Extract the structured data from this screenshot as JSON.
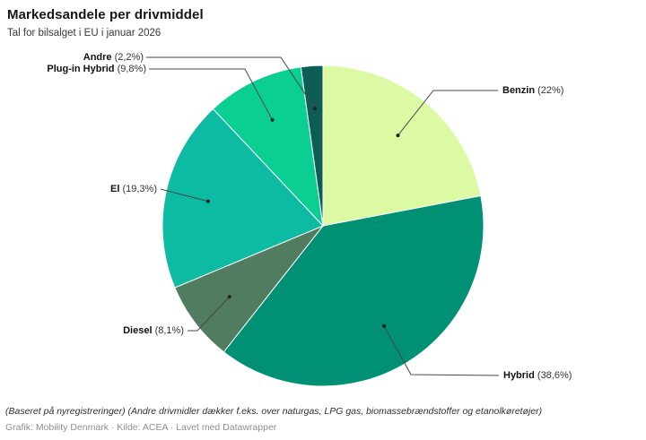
{
  "header": {
    "title": "Markedsandele per drivmiddel",
    "subtitle": "Tal for bilsalget i EU i januar 2026"
  },
  "chart_data": {
    "type": "pie",
    "title": "Markedsandele per drivmiddel",
    "subtitle": "Tal for bilsalget i EU i januar 2026",
    "unit": "%",
    "start_angle_deg": 0,
    "direction": "clockwise",
    "slices": [
      {
        "label": "Benzin",
        "value": 22,
        "pct_label": "(22%)",
        "color": "#DCFAA4"
      },
      {
        "label": "Hybrid",
        "value": 38.6,
        "pct_label": "(38,6%)",
        "color": "#009174"
      },
      {
        "label": "Diesel",
        "value": 8.1,
        "pct_label": "(8,1%)",
        "color": "#527C5F"
      },
      {
        "label": "El",
        "value": 19.3,
        "pct_label": "(19,3%)",
        "color": "#0CBBA1"
      },
      {
        "label": "Plug-in Hybrid",
        "value": 9.8,
        "pct_label": "(9,8%)",
        "color": "#0ACE92"
      },
      {
        "label": "Andre",
        "value": 2.2,
        "pct_label": "(2,2%)",
        "color": "#0C5E54"
      }
    ]
  },
  "footer": {
    "notes": "(Baseret på nyregistreringer) (Andre drivmidler dækker f.eks. over naturgas, LPG gas, biomassebrændstoffer og etanolkøretøjer)",
    "credits": "Grafik: Mobility Denmark · Kilde: ACEA · Lavet med Datawrapper"
  }
}
